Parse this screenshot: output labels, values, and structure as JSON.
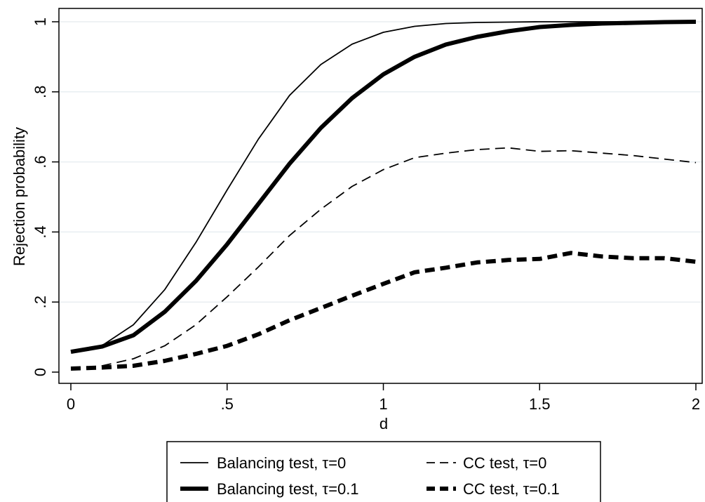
{
  "chart_data": {
    "type": "line",
    "title": "",
    "xlabel": "d",
    "ylabel": "Rejection probability",
    "xlim": [
      0,
      2
    ],
    "ylim": [
      0,
      1
    ],
    "grid": "horizontal",
    "legend_placement": "bottom",
    "x_ticks": [
      {
        "value": 0,
        "label": "0"
      },
      {
        "value": 0.5,
        "label": ".5"
      },
      {
        "value": 1,
        "label": "1"
      },
      {
        "value": 1.5,
        "label": "1.5"
      },
      {
        "value": 2,
        "label": "2"
      }
    ],
    "y_ticks": [
      {
        "value": 0,
        "label": "0"
      },
      {
        "value": 0.2,
        "label": ".2"
      },
      {
        "value": 0.4,
        "label": ".4"
      },
      {
        "value": 0.6,
        "label": ".6"
      },
      {
        "value": 0.8,
        "label": ".8"
      },
      {
        "value": 1,
        "label": "1"
      }
    ],
    "x": [
      0,
      0.1,
      0.2,
      0.3,
      0.4,
      0.5,
      0.6,
      0.7,
      0.8,
      0.9,
      1.0,
      1.1,
      1.2,
      1.3,
      1.4,
      1.5,
      1.6,
      1.7,
      1.8,
      1.9,
      2.0
    ],
    "series": [
      {
        "name": "Balancing test, τ=0",
        "style": "thin-solid",
        "values": [
          0.06,
          0.076,
          0.135,
          0.235,
          0.37,
          0.52,
          0.665,
          0.79,
          0.878,
          0.936,
          0.97,
          0.987,
          0.995,
          0.998,
          0.999,
          1.0,
          1.0,
          1.0,
          1.0,
          1.0,
          1.0
        ]
      },
      {
        "name": "Balancing test, τ=0.1",
        "style": "thick-solid",
        "values": [
          0.058,
          0.073,
          0.105,
          0.172,
          0.26,
          0.365,
          0.48,
          0.595,
          0.697,
          0.782,
          0.85,
          0.9,
          0.935,
          0.957,
          0.973,
          0.985,
          0.991,
          0.995,
          0.997,
          0.999,
          1.0
        ]
      },
      {
        "name": "CC test, τ=0",
        "style": "thin-dashed",
        "values": [
          0.01,
          0.018,
          0.038,
          0.075,
          0.135,
          0.215,
          0.3,
          0.39,
          0.465,
          0.53,
          0.578,
          0.612,
          0.625,
          0.635,
          0.64,
          0.63,
          0.632,
          0.625,
          0.618,
          0.608,
          0.598
        ]
      },
      {
        "name": "CC test, τ=0.1",
        "style": "thick-dashed",
        "values": [
          0.01,
          0.013,
          0.018,
          0.032,
          0.052,
          0.075,
          0.108,
          0.148,
          0.183,
          0.218,
          0.252,
          0.285,
          0.298,
          0.313,
          0.32,
          0.323,
          0.34,
          0.33,
          0.325,
          0.325,
          0.315
        ]
      }
    ]
  }
}
